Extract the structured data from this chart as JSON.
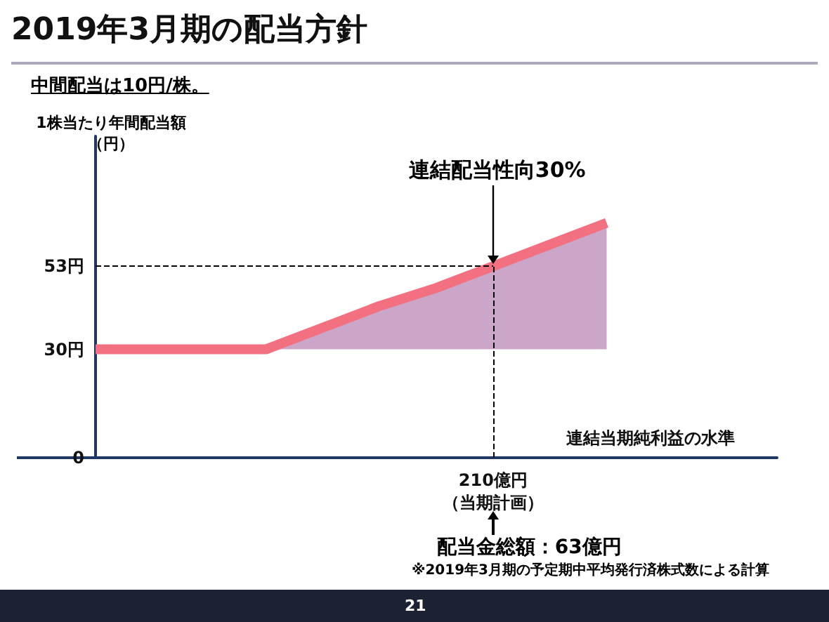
{
  "chart_data": {
    "type": "line",
    "title": "2019年3月期の配当方針",
    "subtitle": "中間配当は10円/株。",
    "xlabel": "連結当期純利益の水準",
    "ylabel": "1株当たり年間配当額（円）",
    "categories": [
      null,
      null,
      null,
      null,
      null,
      null,
      null,
      "210億円（当期計画）",
      null,
      null,
      null,
      null,
      null
    ],
    "series": [
      {
        "color": "#f2707f",
        "values": [
          30,
          30,
          30,
          30,
          36,
          42,
          47,
          53,
          59,
          65,
          null,
          null,
          null
        ],
        "lower": [
          null,
          null,
          null,
          30,
          30,
          30,
          30,
          30,
          30,
          30,
          null,
          null,
          null
        ],
        "upper": [
          null,
          null,
          null,
          30,
          36,
          42,
          47,
          53,
          59,
          65,
          null,
          null,
          null
        ]
      }
    ],
    "ylim": [
      0,
      89
    ],
    "yticks": [
      0,
      {
        "value": 30,
        "label": "30円"
      },
      {
        "value": 53,
        "label": "53円"
      }
    ],
    "ref_lines": [
      {
        "axis": "y",
        "value": 53,
        "line_style": "dashed",
        "color": "#000000"
      },
      {
        "axis": "x",
        "value": "210億円（当期計画）",
        "line_style": "dashed",
        "color": "#000000"
      }
    ],
    "annotations": [
      "連結配当性向30%",
      "配当金総額：63億円",
      "※2019年3月期の予定期中平均発行済株式数による計算",
      "21"
    ],
    "line_style": "solid"
  }
}
